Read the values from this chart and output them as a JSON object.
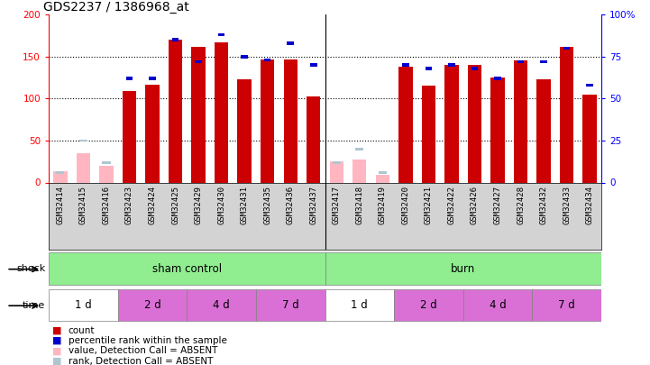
{
  "title": "GDS2237 / 1386968_at",
  "samples": [
    "GSM32414",
    "GSM32415",
    "GSM32416",
    "GSM32423",
    "GSM32424",
    "GSM32425",
    "GSM32429",
    "GSM32430",
    "GSM32431",
    "GSM32435",
    "GSM32436",
    "GSM32437",
    "GSM32417",
    "GSM32418",
    "GSM32419",
    "GSM32420",
    "GSM32421",
    "GSM32422",
    "GSM32426",
    "GSM32427",
    "GSM32428",
    "GSM32432",
    "GSM32433",
    "GSM32434"
  ],
  "count": [
    13,
    35,
    20,
    109,
    116,
    170,
    162,
    167,
    123,
    147,
    147,
    102,
    25,
    27,
    9,
    138,
    115,
    140,
    140,
    125,
    145,
    123,
    162,
    105
  ],
  "percentile": [
    6,
    25,
    12,
    62,
    62,
    85,
    72,
    88,
    75,
    73,
    83,
    70,
    12,
    20,
    6,
    70,
    68,
    70,
    68,
    62,
    72,
    72,
    80,
    58
  ],
  "is_absent": [
    true,
    true,
    true,
    false,
    false,
    false,
    false,
    false,
    false,
    false,
    false,
    false,
    true,
    true,
    true,
    false,
    false,
    false,
    false,
    false,
    false,
    false,
    false,
    false
  ],
  "shock_groups": [
    {
      "label": "sham control",
      "start": 0,
      "end": 12,
      "color": "#90ee90"
    },
    {
      "label": "burn",
      "start": 12,
      "end": 24,
      "color": "#90ee90"
    }
  ],
  "time_groups": [
    {
      "label": "1 d",
      "start": 0,
      "end": 3,
      "color": "#ffffff"
    },
    {
      "label": "2 d",
      "start": 3,
      "end": 6,
      "color": "#da70d6"
    },
    {
      "label": "4 d",
      "start": 6,
      "end": 9,
      "color": "#da70d6"
    },
    {
      "label": "7 d",
      "start": 9,
      "end": 12,
      "color": "#da70d6"
    },
    {
      "label": "1 d",
      "start": 12,
      "end": 15,
      "color": "#ffffff"
    },
    {
      "label": "2 d",
      "start": 15,
      "end": 18,
      "color": "#da70d6"
    },
    {
      "label": "4 d",
      "start": 18,
      "end": 21,
      "color": "#da70d6"
    },
    {
      "label": "7 d",
      "start": 21,
      "end": 24,
      "color": "#da70d6"
    }
  ],
  "ylim_left": [
    0,
    200
  ],
  "ylim_right": [
    0,
    100
  ],
  "yticks_left": [
    0,
    50,
    100,
    150,
    200
  ],
  "yticks_right": [
    0,
    25,
    50,
    75,
    100
  ],
  "bar_color": "#cc0000",
  "blue_color": "#0000cc",
  "absent_count_color": "#ffb6c1",
  "absent_rank_color": "#aec6cf",
  "background_color": "#ffffff",
  "label_bg_color": "#d3d3d3"
}
